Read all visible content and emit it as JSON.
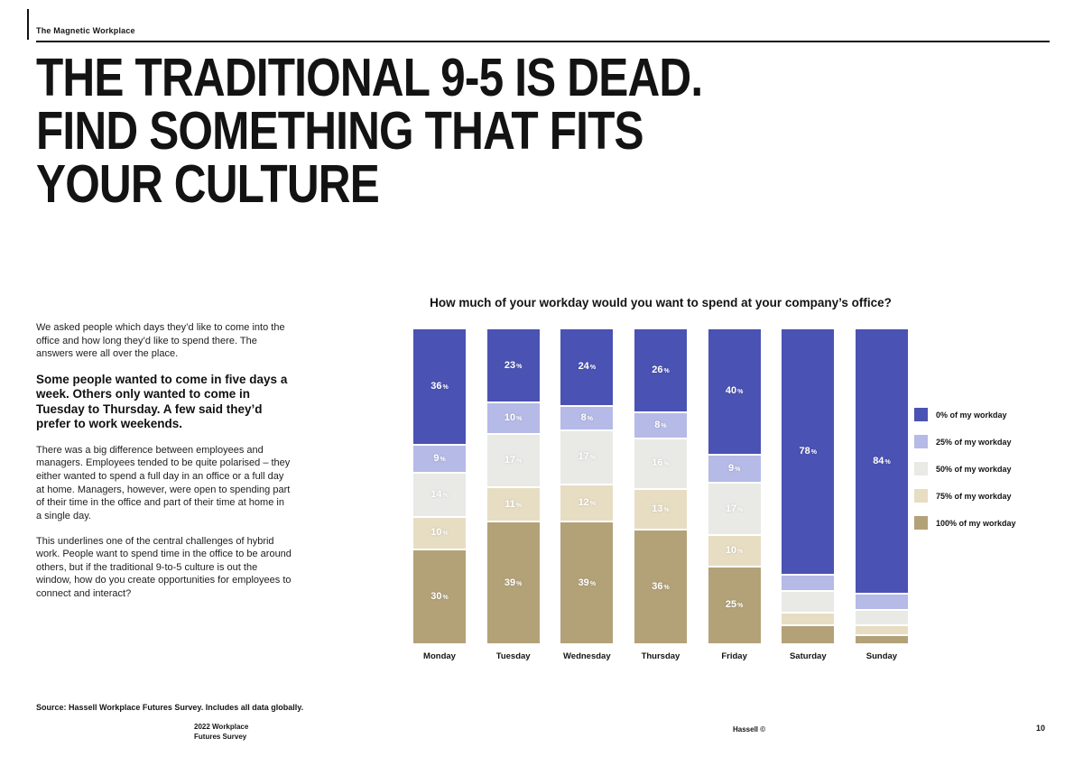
{
  "page": {
    "kicker": "The Magnetic Workplace",
    "headline_lines": [
      "THE TRADITIONAL 9-5 IS DEAD.",
      "FIND SOMETHING THAT FITS",
      "YOUR CULTURE"
    ],
    "intro": "We asked people which days they’d like to come into the office and how long they’d like to spend there. The answers were all over the place.",
    "subhead": "Some people wanted to come in five days a week. Others only wanted to come in Tuesday to Thursday. A few said they’d prefer to work weekends.",
    "body_1": "There was a big difference between employees and managers. Employees tended to be quite polarised – they either wanted to spend a full day in an office or a full day at home. Managers, however, were open to spending part of their time in the office and part of their time at home in a single day.",
    "body_2": "This underlines one of the central challenges of hybrid work. People want to spend time in the office to be around others, but if the traditional 9-to-5 culture is out the window, how do you create opportunities for employees to connect and interact?",
    "source": "Source: Hassell Workplace Futures Survey. Includes all data globally."
  },
  "footer": {
    "left_line1": "2022 Workplace",
    "left_line2": "Futures Survey",
    "center": "Hassell ©",
    "page_number": "10"
  },
  "chart_data": {
    "type": "bar",
    "stacked": true,
    "value_format": "percent",
    "legend_position": "right",
    "title": "How much of your workday would you want to spend at your company’s office?",
    "categories": [
      "Monday",
      "Tuesday",
      "Wednesday",
      "Thursday",
      "Friday",
      "Saturday",
      "Sunday"
    ],
    "series": [
      {
        "name": "0% of my workday",
        "color": "#4a52b4",
        "values": [
          36,
          23,
          24,
          26,
          40,
          78,
          84
        ],
        "labels": [
          "36%",
          "23%",
          "24%",
          "26%",
          "40%",
          "78%",
          "84%"
        ]
      },
      {
        "name": "25% of my workday",
        "color": "#b5bae6",
        "values": [
          9,
          10,
          8,
          8,
          9,
          5,
          5
        ],
        "labels": [
          "9%",
          "10%",
          "8%",
          "8%",
          "9%",
          "",
          ""
        ]
      },
      {
        "name": "50% of my workday",
        "color": "#e9e9e6",
        "values": [
          14,
          17,
          17,
          16,
          17,
          7,
          5
        ],
        "labels": [
          "14%",
          "17%",
          "17%",
          "16%",
          "17%",
          "",
          ""
        ]
      },
      {
        "name": "75% of my workday",
        "color": "#e7ddc3",
        "values": [
          10,
          11,
          12,
          13,
          10,
          4,
          3
        ],
        "labels": [
          "10%",
          "11%",
          "12%",
          "13%",
          "10%",
          "",
          ""
        ]
      },
      {
        "name": "100% of my workday",
        "color": "#b3a178",
        "values": [
          30,
          39,
          39,
          36,
          25,
          6,
          3
        ],
        "labels": [
          "30%",
          "39%",
          "39%",
          "36%",
          "25%",
          "",
          ""
        ]
      }
    ]
  }
}
